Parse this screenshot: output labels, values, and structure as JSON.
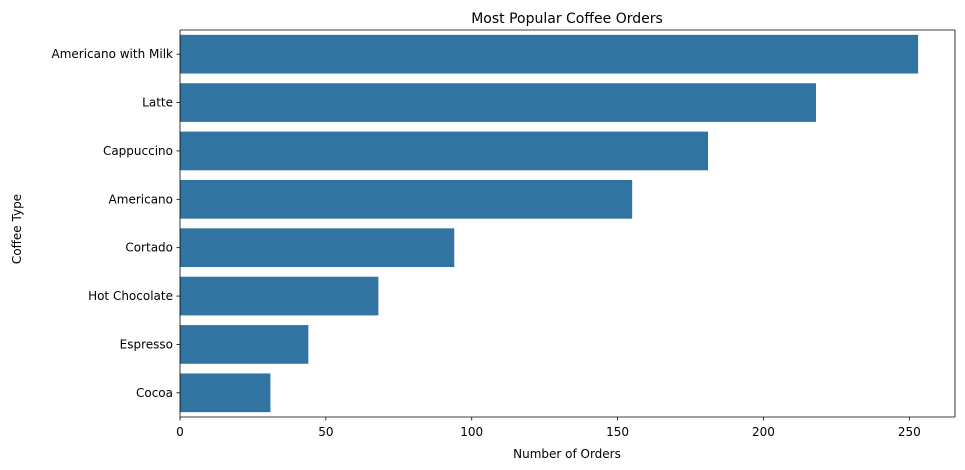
{
  "chart_data": {
    "type": "bar",
    "orientation": "horizontal",
    "title": "Most Popular Coffee Orders",
    "xlabel": "Number of Orders",
    "ylabel": "Coffee Type",
    "categories": [
      "Americano with Milk",
      "Latte",
      "Cappuccino",
      "Americano",
      "Cortado",
      "Hot Chocolate",
      "Espresso",
      "Cocoa"
    ],
    "values": [
      253,
      218,
      181,
      155,
      94,
      68,
      44,
      31
    ],
    "xlim": [
      0,
      265.65
    ],
    "xticks": [
      0,
      50,
      100,
      150,
      200,
      250
    ],
    "grid": false,
    "color": "#3274a1"
  }
}
